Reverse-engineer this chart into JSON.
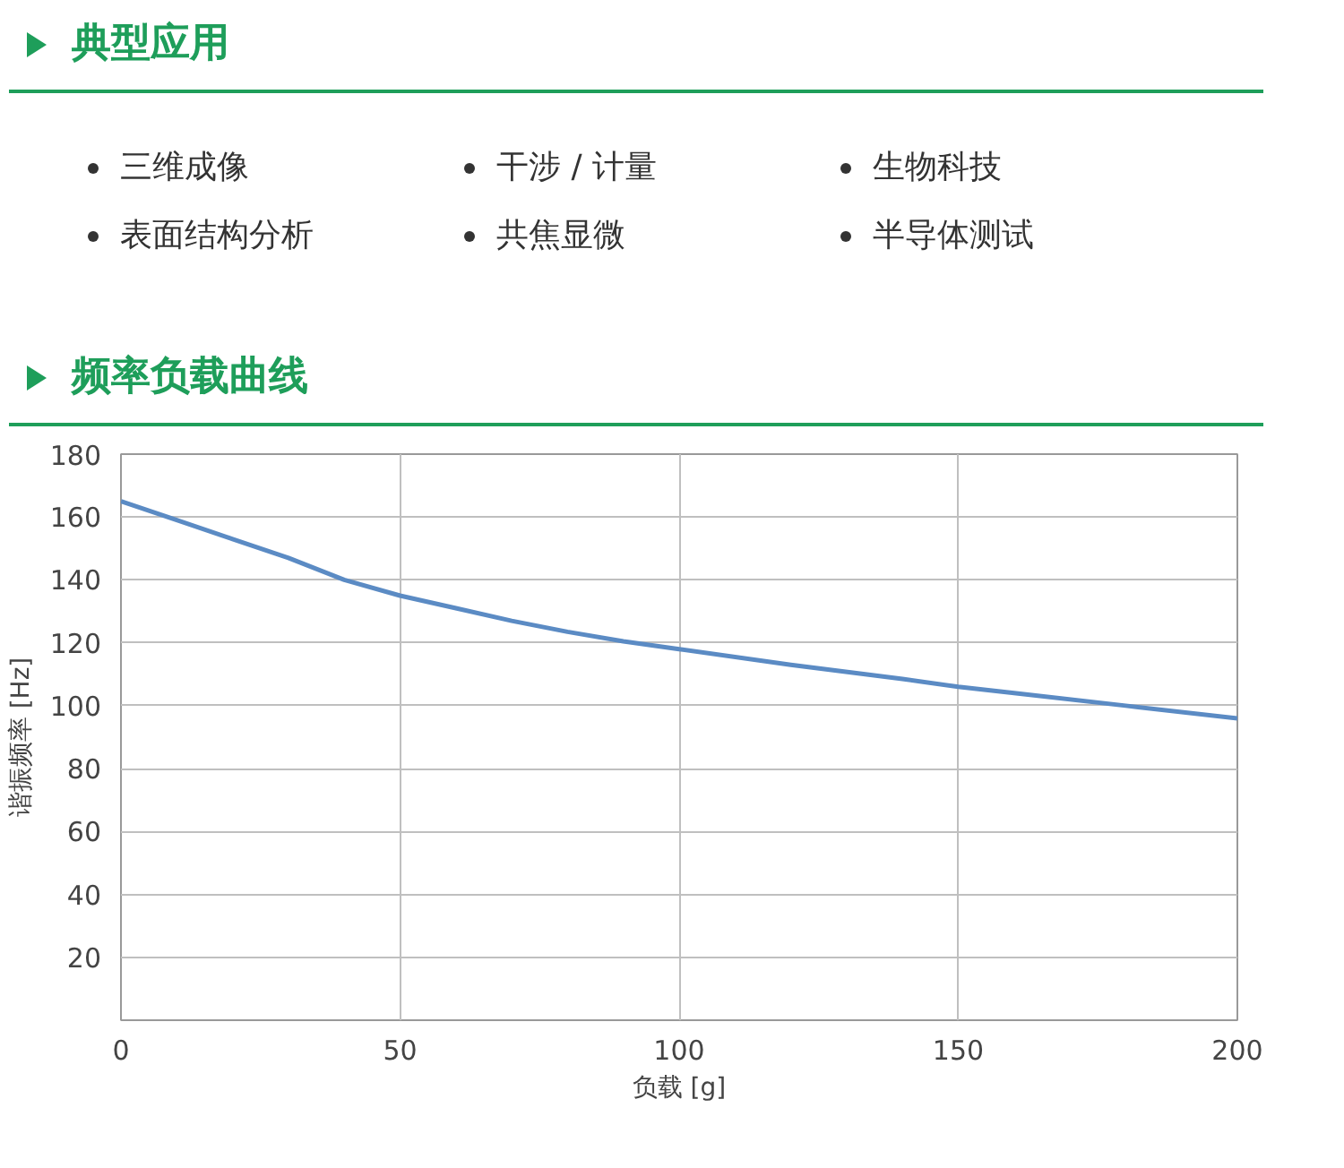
{
  "chart_data": {
    "type": "line",
    "title": "频率负载曲线",
    "xlabel": "负载 [g]",
    "ylabel": "谐振频率 [Hz]",
    "annotations": [
      "典型应用",
      "三维成像",
      "干涉 / 计量",
      "生物科技",
      "表面结构分析",
      "共焦显微",
      "半导体测试"
    ],
    "x": [
      0,
      10,
      20,
      30,
      40,
      50,
      60,
      70,
      80,
      90,
      100,
      120,
      140,
      150,
      160,
      180,
      200
    ],
    "series": [
      {
        "color": "#5b8bc4",
        "values": [
          165,
          159,
          153,
          147,
          140,
          135,
          131,
          127,
          123.5,
          120.5,
          118,
          113,
          108.5,
          106,
          104,
          100,
          96
        ]
      }
    ],
    "xlim": [
      0,
      200
    ],
    "ylim": [
      0,
      180
    ],
    "xticks": [
      0,
      50,
      100,
      150,
      200
    ],
    "yticks": [
      20,
      40,
      60,
      80,
      100,
      120,
      140,
      160,
      180
    ],
    "grid": true,
    "line_style": "solid",
    "marker": "none"
  }
}
